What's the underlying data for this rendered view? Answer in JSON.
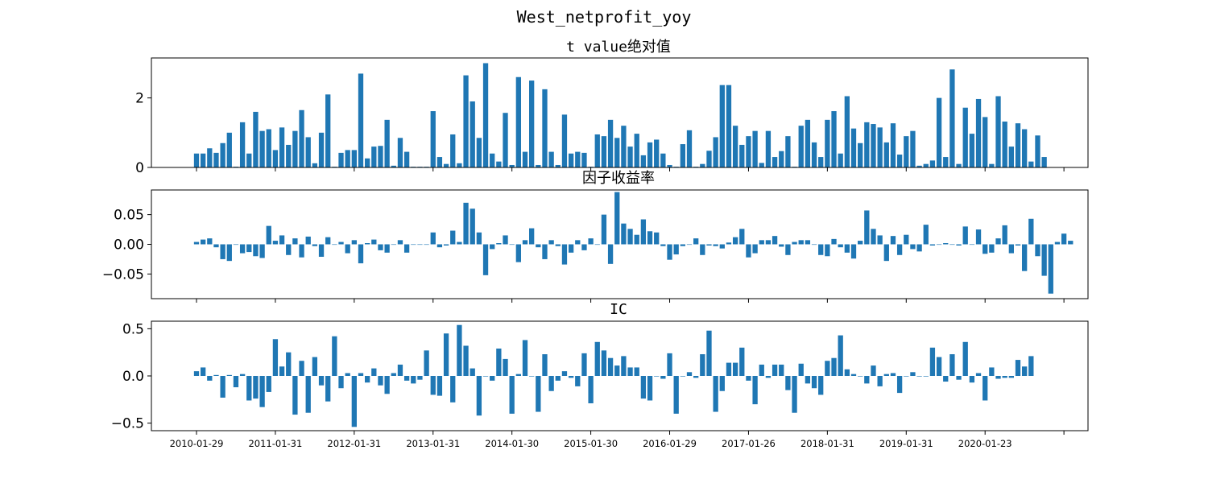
{
  "figure": {
    "title": "West_netprofit_yoy"
  },
  "x_ticks": [
    "2010-01-29",
    "2011-01-31",
    "2012-01-31",
    "2013-01-31",
    "2014-01-30",
    "2015-01-30",
    "2016-01-29",
    "2017-01-26",
    "2018-01-31",
    "2019-01-31",
    "2020-01-23"
  ],
  "chart_data": [
    {
      "type": "bar",
      "title": "t value绝对值",
      "xlabel": "",
      "ylabel": "",
      "ylim": [
        0,
        3.15
      ],
      "yticks": [
        0,
        2
      ],
      "ytick_labels": [
        "0",
        "2"
      ],
      "bar_color": "#1f77b4",
      "x_start_month": "2010-01",
      "values": [
        0.4,
        0.4,
        0.55,
        0.42,
        0.7,
        1.0,
        0.02,
        1.3,
        0.4,
        1.6,
        1.05,
        1.1,
        0.5,
        1.15,
        0.65,
        1.05,
        1.65,
        0.87,
        0.12,
        1.0,
        2.1,
        0.02,
        0.42,
        0.5,
        0.5,
        2.7,
        0.26,
        0.6,
        0.62,
        1.37,
        0.05,
        0.85,
        0.45,
        0.02,
        0.02,
        0.02,
        1.62,
        0.3,
        0.1,
        0.95,
        0.12,
        2.65,
        1.9,
        0.85,
        3.0,
        0.4,
        0.17,
        1.57,
        0.07,
        2.6,
        0.45,
        2.5,
        0.07,
        2.25,
        0.45,
        0.07,
        1.52,
        0.4,
        0.45,
        0.42,
        0.02,
        0.95,
        0.9,
        1.37,
        0.85,
        1.2,
        0.6,
        0.97,
        0.35,
        0.72,
        0.8,
        0.4,
        0.07,
        0.02,
        0.67,
        1.07,
        0.02,
        0.1,
        0.48,
        0.87,
        2.37,
        2.37,
        1.2,
        0.65,
        0.9,
        1.05,
        0.13,
        1.05,
        0.3,
        0.47,
        0.9,
        0.02,
        1.2,
        1.37,
        0.72,
        0.3,
        1.37,
        1.62,
        0.4,
        2.05,
        1.12,
        0.7,
        1.3,
        1.25,
        1.15,
        0.72,
        1.27,
        0.37,
        0.9,
        1.05,
        0.05,
        0.1,
        0.2,
        2.0,
        0.3,
        2.82,
        0.1,
        1.72,
        0.97,
        1.97,
        1.45,
        0.1,
        2.05,
        1.32,
        0.6,
        1.27,
        1.1,
        0.17,
        0.92,
        0.3
      ]
    },
    {
      "type": "bar",
      "title": "因子收益率",
      "xlabel": "",
      "ylabel": "",
      "ylim": [
        -0.0915,
        0.0915
      ],
      "yticks": [
        -0.05,
        0,
        0.05
      ],
      "ytick_labels": [
        "−0.05",
        "0.00",
        "0.05"
      ],
      "bar_color": "#1f77b4",
      "x_start_month": "2010-01",
      "values": [
        0.004,
        0.008,
        0.01,
        -0.005,
        -0.025,
        -0.028,
        0.0,
        -0.015,
        -0.013,
        -0.02,
        -0.023,
        0.031,
        0.006,
        0.015,
        -0.018,
        0.01,
        -0.022,
        0.013,
        -0.003,
        -0.021,
        0.012,
        0.0,
        0.004,
        -0.015,
        0.007,
        -0.032,
        0.002,
        0.008,
        -0.01,
        -0.014,
        0.0,
        0.007,
        -0.014,
        0.0,
        0.0,
        0.0,
        0.02,
        -0.005,
        -0.002,
        0.023,
        0.004,
        0.07,
        0.06,
        0.02,
        -0.052,
        -0.008,
        0.002,
        0.015,
        0.0,
        -0.03,
        0.007,
        0.027,
        -0.005,
        -0.025,
        0.007,
        -0.003,
        -0.034,
        -0.014,
        0.007,
        -0.01,
        0.01,
        0.0,
        0.05,
        -0.033,
        0.088,
        0.035,
        0.026,
        0.016,
        0.042,
        0.022,
        0.02,
        -0.003,
        -0.026,
        -0.017,
        -0.003,
        0.0,
        0.01,
        -0.018,
        -0.002,
        -0.003,
        -0.007,
        0.003,
        0.012,
        0.026,
        -0.022,
        -0.015,
        0.007,
        0.007,
        0.014,
        -0.004,
        -0.018,
        0.004,
        0.007,
        0.007,
        0.0,
        -0.018,
        -0.02,
        0.009,
        -0.005,
        -0.014,
        -0.024,
        0.006,
        0.057,
        0.026,
        0.015,
        -0.028,
        0.014,
        -0.018,
        0.016,
        -0.008,
        -0.012,
        0.033,
        -0.002,
        0.0,
        0.002,
        0.0,
        -0.002,
        0.03,
        0.0,
        0.025,
        -0.016,
        -0.014,
        0.01,
        0.032,
        -0.015,
        -0.002,
        -0.045,
        0.043,
        -0.02,
        -0.053,
        -0.083,
        0.004,
        0.018,
        0.006
      ]
    },
    {
      "type": "bar",
      "title": "IC",
      "xlabel": "",
      "ylabel": "",
      "ylim": [
        -0.58,
        0.58
      ],
      "yticks": [
        -0.5,
        0,
        0.5
      ],
      "ytick_labels": [
        "−0.5",
        "0.0",
        "0.5"
      ],
      "bar_color": "#1f77b4",
      "x_start_month": "2010-01",
      "values": [
        0.05,
        0.09,
        -0.05,
        0.01,
        -0.23,
        0.01,
        -0.12,
        0.02,
        -0.26,
        -0.24,
        -0.33,
        -0.17,
        0.39,
        0.1,
        0.25,
        -0.41,
        0.16,
        -0.39,
        0.2,
        -0.1,
        -0.27,
        0.42,
        -0.13,
        0.03,
        -0.54,
        0.03,
        -0.07,
        0.08,
        -0.1,
        -0.19,
        0.03,
        0.12,
        -0.05,
        -0.08,
        -0.04,
        0.27,
        -0.2,
        -0.21,
        0.45,
        -0.28,
        0.54,
        0.32,
        0.08,
        -0.42,
        0.0,
        -0.05,
        0.29,
        0.18,
        -0.4,
        0.02,
        0.38,
        0.0,
        -0.38,
        0.23,
        -0.16,
        -0.05,
        0.05,
        -0.02,
        -0.11,
        0.24,
        -0.29,
        0.36,
        0.27,
        0.19,
        0.11,
        0.21,
        0.09,
        0.09,
        -0.24,
        -0.26,
        0.0,
        -0.03,
        0.24,
        -0.4,
        0.0,
        0.04,
        -0.02,
        0.23,
        0.48,
        -0.38,
        -0.16,
        0.14,
        0.14,
        0.3,
        -0.05,
        -0.3,
        0.12,
        -0.02,
        0.12,
        0.12,
        -0.15,
        -0.39,
        0.13,
        -0.08,
        -0.13,
        -0.2,
        0.16,
        0.19,
        0.43,
        0.07,
        0.02,
        0.0,
        -0.08,
        0.11,
        -0.11,
        0.02,
        0.03,
        -0.18,
        0.0,
        0.04,
        0.0,
        0.0,
        0.3,
        0.2,
        -0.06,
        0.23,
        -0.04,
        0.36,
        -0.07,
        0.03,
        -0.26,
        0.09,
        -0.03,
        -0.02,
        -0.02,
        0.17,
        0.1,
        0.21
      ]
    }
  ]
}
